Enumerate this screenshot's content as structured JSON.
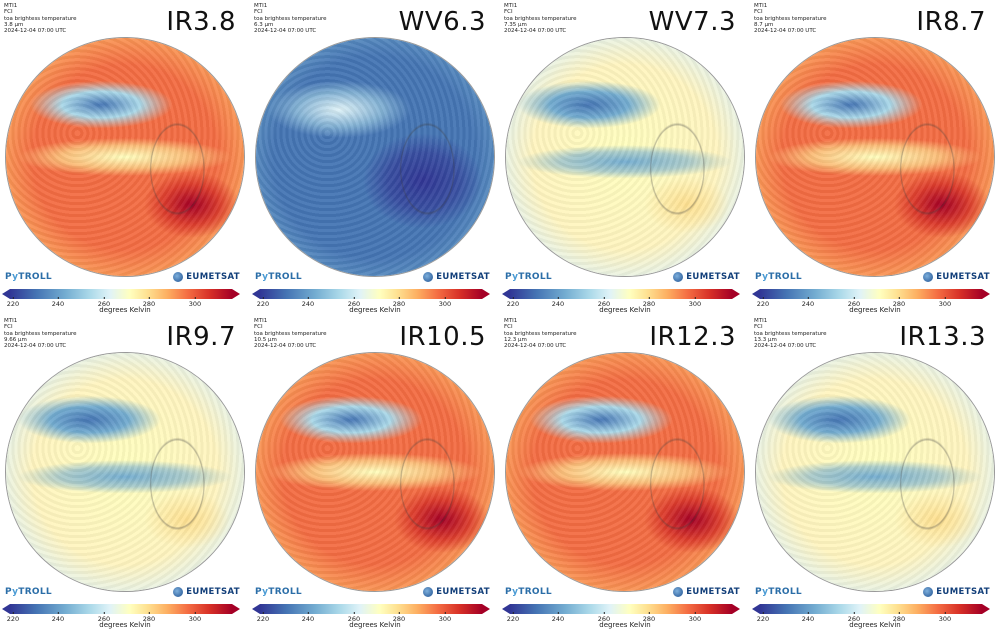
{
  "common": {
    "satellite": "MTI1",
    "instrument": "FCI",
    "quantity": "toa brightess temperature",
    "timestamp": "2024-12-04 07:00 UTC",
    "logo_left": "PyTROLL",
    "logo_right": "EUMETSAT",
    "colorbar": {
      "colormap": "RdYlBu_r",
      "colors": [
        "#313695",
        "#4575b4",
        "#74add1",
        "#abd9e9",
        "#e0f3f8",
        "#ffffbf",
        "#fee090",
        "#fdae61",
        "#f46d43",
        "#d73027",
        "#a50026"
      ],
      "ticks": [
        "220",
        "240",
        "260",
        "280",
        "300"
      ],
      "label": "degrees Kelvin",
      "extend": "both"
    }
  },
  "panels": [
    {
      "channel": "IR3.8",
      "wavelength": "3.8 µm",
      "palette": "warm"
    },
    {
      "channel": "WV6.3",
      "wavelength": "6.3 µm",
      "palette": "blue"
    },
    {
      "channel": "WV7.3",
      "wavelength": "7.35 µm",
      "palette": "light"
    },
    {
      "channel": "IR8.7",
      "wavelength": "8.7 µm",
      "palette": "warm"
    },
    {
      "channel": "IR9.7",
      "wavelength": "9.66 µm",
      "palette": "light"
    },
    {
      "channel": "IR10.5",
      "wavelength": "10.5 µm",
      "palette": "warm"
    },
    {
      "channel": "IR12.3",
      "wavelength": "12.3 µm",
      "palette": "warm"
    },
    {
      "channel": "IR13.3",
      "wavelength": "13.3 µm",
      "palette": "light"
    }
  ]
}
